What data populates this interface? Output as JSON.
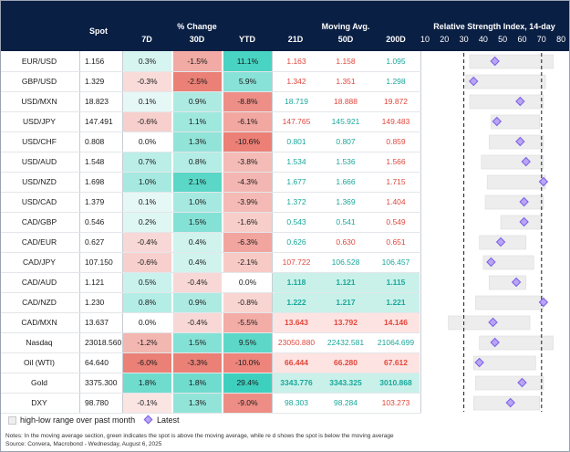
{
  "header": {
    "spot": "Spot",
    "pct_change": "% Change",
    "d7": "7D",
    "d30": "30D",
    "ytd": "YTD",
    "moving_avg": "Moving Avg.",
    "ma21": "21D",
    "ma50": "50D",
    "ma200": "200D",
    "rsi_title": "Relative Strength Index, 14-day",
    "rsi_ticks": [
      "10",
      "20",
      "30",
      "40",
      "50",
      "60",
      "70",
      "80"
    ]
  },
  "colors": {
    "header_bg": "#0a1f44",
    "green": "#19a89a",
    "red": "#e0463c",
    "diamond": "#b9a4f5"
  },
  "chart_data": {
    "type": "table",
    "rsi_axis": [
      10,
      80
    ],
    "rsi_reference_lines": [
      30,
      70
    ],
    "rows": [
      {
        "name": "EUR/USD",
        "spot": "1.156",
        "d7": "0.3%",
        "d30": "-1.5%",
        "ytd": "11.1%",
        "ma21": "1.163",
        "ma50": "1.158",
        "ma200": "1.095",
        "ma21_up": false,
        "ma50_up": false,
        "ma200_up": true,
        "rsi_low": 33,
        "rsi_high": 76,
        "rsi": 46
      },
      {
        "name": "GBP/USD",
        "spot": "1.329",
        "d7": "-0.3%",
        "d30": "-2.5%",
        "ytd": "5.9%",
        "ma21": "1.342",
        "ma50": "1.351",
        "ma200": "1.298",
        "ma21_up": false,
        "ma50_up": false,
        "ma200_up": true,
        "rsi_low": 31,
        "rsi_high": 72,
        "rsi": 35
      },
      {
        "name": "USD/MXN",
        "spot": "18.823",
        "d7": "0.1%",
        "d30": "0.9%",
        "ytd": "-8.8%",
        "ma21": "18.719",
        "ma50": "18.888",
        "ma200": "19.872",
        "ma21_up": true,
        "ma50_up": false,
        "ma200_up": false,
        "rsi_low": 33,
        "rsi_high": 71,
        "rsi": 59
      },
      {
        "name": "USD/JPY",
        "spot": "147.491",
        "d7": "-0.6%",
        "d30": "1.1%",
        "ytd": "-6.1%",
        "ma21": "147.765",
        "ma50": "145.921",
        "ma200": "149.483",
        "ma21_up": false,
        "ma50_up": true,
        "ma200_up": false,
        "rsi_low": 44,
        "rsi_high": 69,
        "rsi": 47
      },
      {
        "name": "USD/CHF",
        "spot": "0.808",
        "d7": "0.0%",
        "d30": "1.3%",
        "ytd": "-10.6%",
        "ma21": "0.801",
        "ma50": "0.807",
        "ma200": "0.859",
        "ma21_up": true,
        "ma50_up": true,
        "ma200_up": false,
        "rsi_low": 43,
        "rsi_high": 71,
        "rsi": 59
      },
      {
        "name": "USD/AUD",
        "spot": "1.548",
        "d7": "0.7%",
        "d30": "0.8%",
        "ytd": "-3.8%",
        "ma21": "1.534",
        "ma50": "1.536",
        "ma200": "1.566",
        "ma21_up": true,
        "ma50_up": true,
        "ma200_up": false,
        "rsi_low": 39,
        "rsi_high": 71,
        "rsi": 62
      },
      {
        "name": "USD/NZD",
        "spot": "1.698",
        "d7": "1.0%",
        "d30": "2.1%",
        "ytd": "-4.3%",
        "ma21": "1.677",
        "ma50": "1.666",
        "ma200": "1.715",
        "ma21_up": true,
        "ma50_up": true,
        "ma200_up": false,
        "rsi_low": 42,
        "rsi_high": 72,
        "rsi": 71
      },
      {
        "name": "USD/CAD",
        "spot": "1.379",
        "d7": "0.1%",
        "d30": "1.0%",
        "ytd": "-3.9%",
        "ma21": "1.372",
        "ma50": "1.369",
        "ma200": "1.404",
        "ma21_up": true,
        "ma50_up": true,
        "ma200_up": false,
        "rsi_low": 41,
        "rsi_high": 71,
        "rsi": 61
      },
      {
        "name": "CAD/GBP",
        "spot": "0.546",
        "d7": "0.2%",
        "d30": "1.5%",
        "ytd": "-1.6%",
        "ma21": "0.543",
        "ma50": "0.541",
        "ma200": "0.549",
        "ma21_up": true,
        "ma50_up": true,
        "ma200_up": false,
        "rsi_low": 49,
        "rsi_high": 70,
        "rsi": 61
      },
      {
        "name": "CAD/EUR",
        "spot": "0.627",
        "d7": "-0.4%",
        "d30": "0.4%",
        "ytd": "-6.3%",
        "ma21": "0.626",
        "ma50": "0.630",
        "ma200": "0.651",
        "ma21_up": true,
        "ma50_up": false,
        "ma200_up": false,
        "rsi_low": 38,
        "rsi_high": 62,
        "rsi": 49
      },
      {
        "name": "CAD/JPY",
        "spot": "107.150",
        "d7": "-0.6%",
        "d30": "0.4%",
        "ytd": "-2.1%",
        "ma21": "107.722",
        "ma50": "106.528",
        "ma200": "106.457",
        "ma21_up": false,
        "ma50_up": true,
        "ma200_up": true,
        "rsi_low": 40,
        "rsi_high": 66,
        "rsi": 44
      },
      {
        "name": "CAD/AUD",
        "spot": "1.121",
        "d7": "0.5%",
        "d30": "-0.4%",
        "ytd": "0.0%",
        "ma21": "1.118",
        "ma50": "1.121",
        "ma200": "1.115",
        "ma21_up": true,
        "ma50_up": true,
        "ma200_up": true,
        "rsi_low": 43,
        "rsi_high": 62,
        "rsi": 57
      },
      {
        "name": "CAD/NZD",
        "spot": "1.230",
        "d7": "0.8%",
        "d30": "0.9%",
        "ytd": "-0.8%",
        "ma21": "1.222",
        "ma50": "1.217",
        "ma200": "1.221",
        "ma21_up": true,
        "ma50_up": true,
        "ma200_up": true,
        "rsi_low": 36,
        "rsi_high": 71,
        "rsi": 71
      },
      {
        "name": "CAD/MXN",
        "spot": "13.637",
        "d7": "0.0%",
        "d30": "-0.4%",
        "ytd": "-5.5%",
        "ma21": "13.643",
        "ma50": "13.792",
        "ma200": "14.146",
        "ma21_up": false,
        "ma50_up": false,
        "ma200_up": false,
        "rsi_low": 22,
        "rsi_high": 64,
        "rsi": 45
      },
      {
        "name": "Nasdaq",
        "spot": "23018.560",
        "d7": "-1.2%",
        "d30": "1.5%",
        "ytd": "9.5%",
        "ma21": "23050.880",
        "ma50": "22432.581",
        "ma200": "21064.699",
        "ma21_up": false,
        "ma50_up": true,
        "ma200_up": true,
        "rsi_low": 38,
        "rsi_high": 76,
        "rsi": 46
      },
      {
        "name": "Oil (WTI)",
        "spot": "64.640",
        "d7": "-6.0%",
        "d30": "-3.3%",
        "ytd": "-10.0%",
        "ma21": "66.444",
        "ma50": "66.280",
        "ma200": "67.612",
        "ma21_up": false,
        "ma50_up": false,
        "ma200_up": false,
        "rsi_low": 35,
        "rsi_high": 67,
        "rsi": 38
      },
      {
        "name": "Gold",
        "spot": "3375.300",
        "d7": "1.8%",
        "d30": "1.8%",
        "ytd": "29.4%",
        "ma21": "3343.776",
        "ma50": "3343.325",
        "ma200": "3010.868",
        "ma21_up": true,
        "ma50_up": true,
        "ma200_up": true,
        "rsi_low": 36,
        "rsi_high": 71,
        "rsi": 60
      },
      {
        "name": "DXY",
        "spot": "98.780",
        "d7": "-0.1%",
        "d30": "1.3%",
        "ytd": "-9.0%",
        "ma21": "98.303",
        "ma50": "98.284",
        "ma200": "103.273",
        "ma21_up": true,
        "ma50_up": true,
        "ma200_up": false,
        "rsi_low": 35,
        "rsi_high": 69,
        "rsi": 54
      }
    ]
  },
  "legend": {
    "range": "high-low range over past month",
    "latest": "Latest"
  },
  "notes": {
    "line1": "Notes: In the moving average section, green indicates the spot is above the moving average, while re  d shows the spot is below  the moving average",
    "line2": "Source: Convera, Macrobond - Wednesday, August 6, 2025"
  }
}
